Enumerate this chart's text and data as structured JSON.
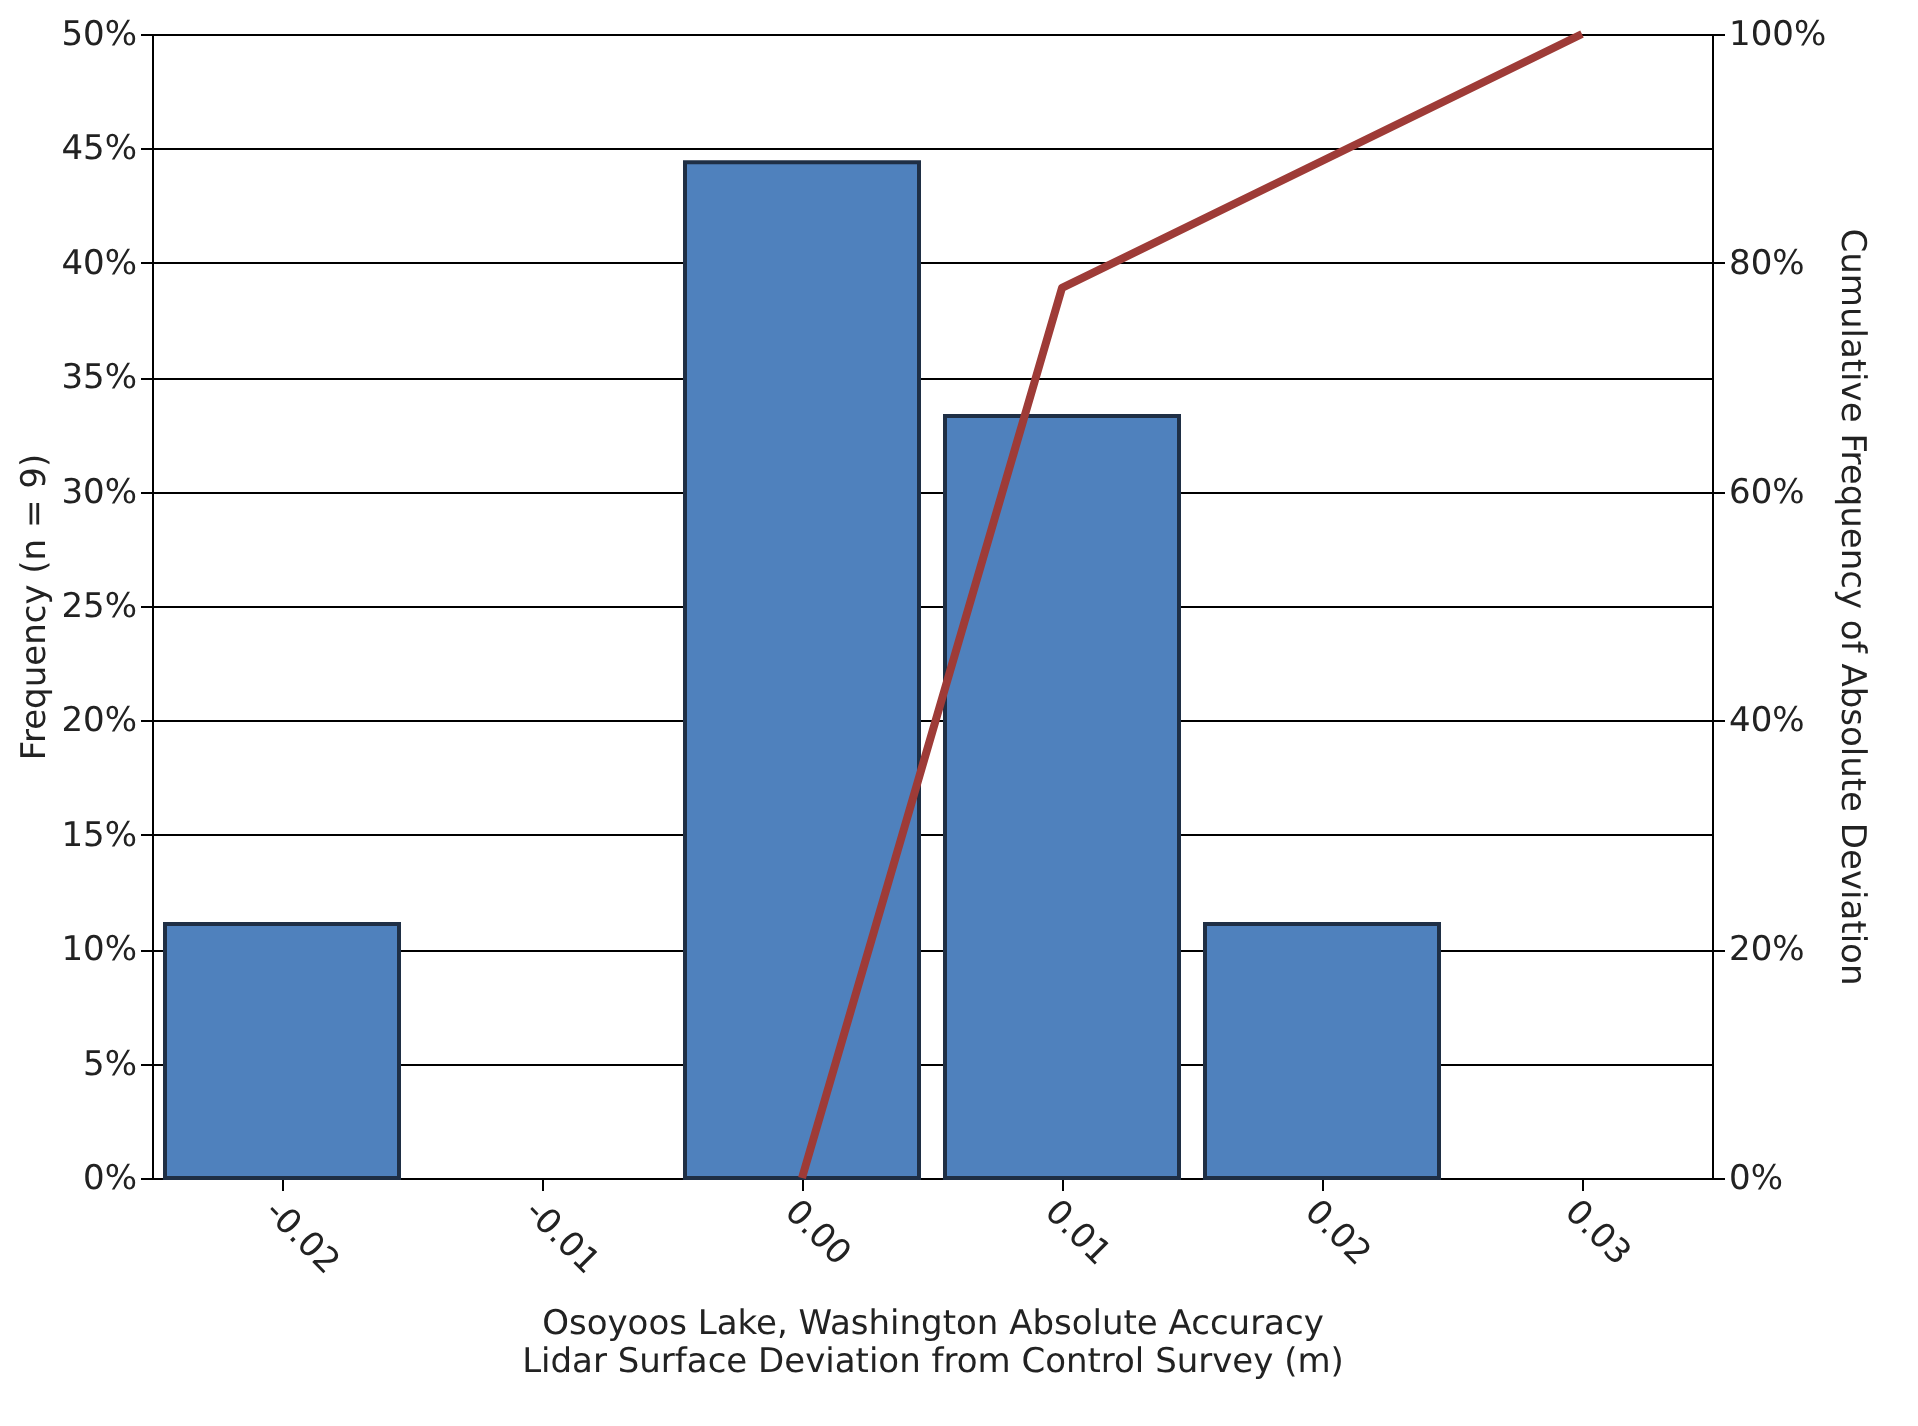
{
  "chart_data": {
    "type": "bar",
    "xlabel": "Osoyoos Lake, Washington Absolute Accuracy\nLidar Surface Deviation from Control Survey (m)",
    "ylabel": "Frequency (n = 9)",
    "y2label": "Cumulative Frequency of Absolute Deviation",
    "categories": [
      "-0.02",
      "-0.01",
      "0.00",
      "0.01",
      "0.02",
      "0.03"
    ],
    "series": [
      {
        "color": "#4f81bd",
        "values": [
          11.1,
          0,
          44.4,
          33.3,
          11.1,
          0
        ]
      },
      {
        "type": "line",
        "axis": "y2",
        "color": "#9e3b37",
        "values": [
          null,
          null,
          0,
          77.8,
          88.9,
          100
        ]
      }
    ],
    "ylim": [
      0,
      50
    ],
    "yticks": [
      {
        "value": 0,
        "label": "0%"
      },
      {
        "value": 5,
        "label": "5%"
      },
      {
        "value": 10,
        "label": "10%"
      },
      {
        "value": 15,
        "label": "15%"
      },
      {
        "value": 20,
        "label": "20%"
      },
      {
        "value": 25,
        "label": "25%"
      },
      {
        "value": 30,
        "label": "30%"
      },
      {
        "value": 35,
        "label": "35%"
      },
      {
        "value": 40,
        "label": "40%"
      },
      {
        "value": 45,
        "label": "45%"
      },
      {
        "value": 50,
        "label": "50%"
      }
    ],
    "y2lim": [
      0,
      100
    ],
    "y2ticks": [
      {
        "value": 0,
        "label": "0%"
      },
      {
        "value": 20,
        "label": "20%"
      },
      {
        "value": 40,
        "label": "40%"
      },
      {
        "value": 60,
        "label": "60%"
      },
      {
        "value": 80,
        "label": "80%"
      },
      {
        "value": 100,
        "label": "100%"
      }
    ],
    "grid": "y",
    "marker": "none",
    "line_style": "solid"
  }
}
